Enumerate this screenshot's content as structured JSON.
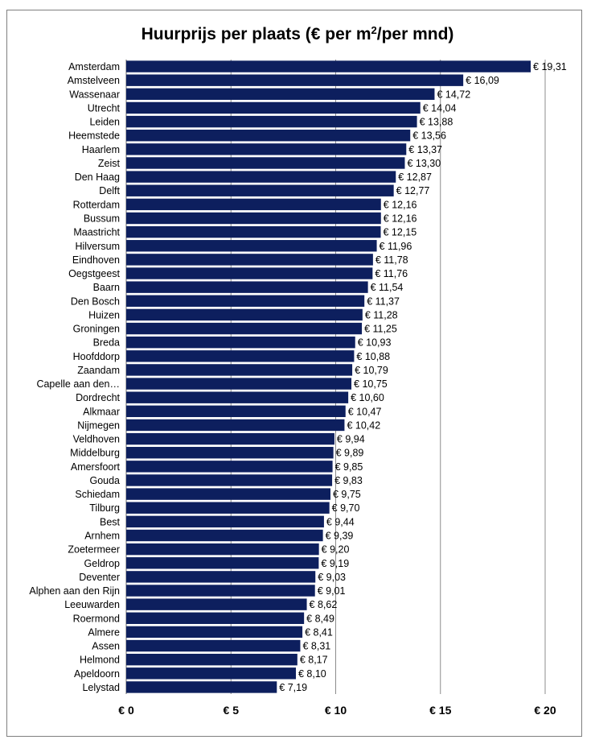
{
  "chart_data": {
    "type": "bar",
    "orientation": "horizontal",
    "title_prefix": "Huurprijs per plaats  (€ per m",
    "title_sup": "2",
    "title_suffix": "/per mnd)",
    "xlabel": "",
    "ylabel": "",
    "xlim": [
      0,
      20
    ],
    "x_ticks": [
      0,
      5,
      10,
      15,
      20
    ],
    "x_tick_labels": [
      "€ 0",
      "€ 5",
      "€ 10",
      "€ 15",
      "€ 20"
    ],
    "grid": "vertical",
    "bar_color": "#0d1f5e",
    "categories": [
      "Amsterdam",
      "Amstelveen",
      "Wassenaar",
      "Utrecht",
      "Leiden",
      "Heemstede",
      "Haarlem",
      "Zeist",
      "Den Haag",
      "Delft",
      "Rotterdam",
      "Bussum",
      "Maastricht",
      "Hilversum",
      "Eindhoven",
      "Oegstgeest",
      "Baarn",
      "Den Bosch",
      "Huizen",
      "Groningen",
      "Breda",
      "Hoofddorp",
      "Zaandam",
      "Capelle aan den…",
      "Dordrecht",
      "Alkmaar",
      "Nijmegen",
      "Veldhoven",
      "Middelburg",
      "Amersfoort",
      "Gouda",
      "Schiedam",
      "Tilburg",
      "Best",
      "Arnhem",
      "Zoetermeer",
      "Geldrop",
      "Deventer",
      "Alphen aan den Rijn",
      "Leeuwarden",
      "Roermond",
      "Almere",
      "Assen",
      "Helmond",
      "Apeldoorn",
      "Lelystad"
    ],
    "values": [
      19.31,
      16.09,
      14.72,
      14.04,
      13.88,
      13.56,
      13.37,
      13.3,
      12.87,
      12.77,
      12.16,
      12.16,
      12.15,
      11.96,
      11.78,
      11.76,
      11.54,
      11.37,
      11.28,
      11.25,
      10.93,
      10.88,
      10.79,
      10.75,
      10.6,
      10.47,
      10.42,
      9.94,
      9.89,
      9.85,
      9.83,
      9.75,
      9.7,
      9.44,
      9.39,
      9.2,
      9.19,
      9.03,
      9.01,
      8.62,
      8.49,
      8.41,
      8.31,
      8.17,
      8.1,
      7.19
    ],
    "value_labels": [
      "€ 19,31",
      "€ 16,09",
      "€ 14,72",
      "€ 14,04",
      "€ 13,88",
      "€ 13,56",
      "€ 13,37",
      "€ 13,30",
      "€ 12,87",
      "€ 12,77",
      "€ 12,16",
      "€ 12,16",
      "€ 12,15",
      "€ 11,96",
      "€ 11,78",
      "€ 11,76",
      "€ 11,54",
      "€ 11,37",
      "€ 11,28",
      "€ 11,25",
      "€ 10,93",
      "€ 10,88",
      "€ 10,79",
      "€ 10,75",
      "€ 10,60",
      "€ 10,47",
      "€ 10,42",
      "€ 9,94",
      "€ 9,89",
      "€ 9,85",
      "€ 9,83",
      "€ 9,75",
      "€ 9,70",
      "€ 9,44",
      "€ 9,39",
      "€ 9,20",
      "€ 9,19",
      "€ 9,03",
      "€ 9,01",
      "€ 8,62",
      "€ 8,49",
      "€ 8,41",
      "€ 8,31",
      "€ 8,17",
      "€ 8,10",
      "€ 7,19"
    ]
  }
}
